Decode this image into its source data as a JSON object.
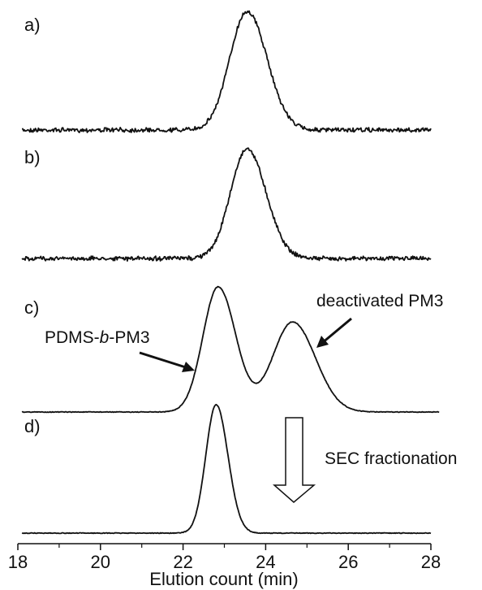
{
  "chart_data": {
    "type": "line",
    "xlabel": "Elution count (min)",
    "xlim": [
      18,
      28
    ],
    "x_ticks": [
      "18",
      "20",
      "22",
      "24",
      "26",
      "28"
    ],
    "panels": [
      {
        "label": "a)",
        "baseline_from": 18.1,
        "baseline_to": 28.0,
        "peaks": [
          {
            "center": 23.55,
            "sigma": 0.42,
            "height": 1.0
          }
        ],
        "noise": true
      },
      {
        "label": "b)",
        "baseline_from": 18.1,
        "baseline_to": 28.0,
        "peaks": [
          {
            "center": 23.55,
            "sigma": 0.4,
            "height": 1.0
          }
        ],
        "noise": true
      },
      {
        "label": "c)",
        "baseline_from": 18.1,
        "baseline_to": 28.2,
        "peaks": [
          {
            "center": 22.85,
            "sigma": 0.37,
            "height": 1.0,
            "name": "PDMS-b-PM3"
          },
          {
            "center": 24.65,
            "sigma": 0.48,
            "height": 0.72,
            "name": "deactivated PM3"
          }
        ],
        "noise": false
      },
      {
        "label": "d)",
        "baseline_from": 18.1,
        "baseline_to": 28.0,
        "peaks": [
          {
            "center": 22.8,
            "sigma": 0.25,
            "height": 1.0
          }
        ],
        "noise": false
      }
    ],
    "annotations": {
      "peak1_prefix": "PDMS-",
      "peak1_italic": "b",
      "peak1_suffix": "-PM3",
      "peak2": "deactivated PM3",
      "process": "SEC fractionation"
    }
  }
}
